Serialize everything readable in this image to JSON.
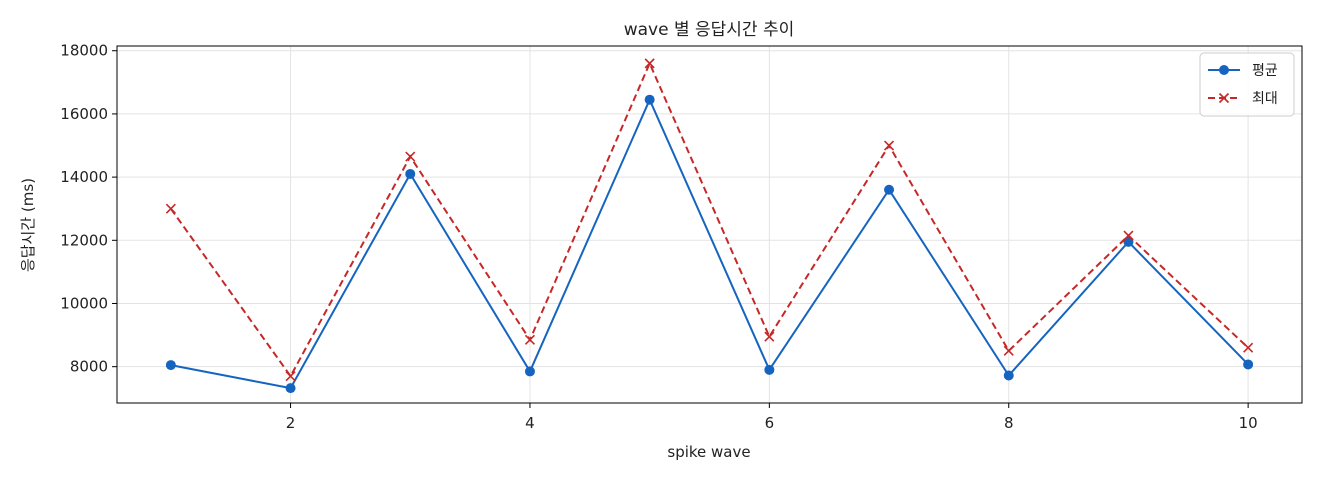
{
  "chart_data": {
    "type": "line",
    "title": "wave 별 응답시간 추이",
    "xlabel": "spike wave",
    "ylabel": "응답시간 (ms)",
    "x": [
      1,
      2,
      3,
      4,
      5,
      6,
      7,
      8,
      9,
      10
    ],
    "xlim": [
      0.55,
      10.45
    ],
    "ylim": [
      6850,
      18150
    ],
    "xticks": [
      2,
      4,
      6,
      8,
      10
    ],
    "yticks": [
      8000,
      10000,
      12000,
      14000,
      16000,
      18000
    ],
    "grid": true,
    "legend_position": "top-right",
    "series": [
      {
        "name": "평균",
        "color": "#1565c0",
        "line_style": "solid",
        "marker": "circle",
        "values": [
          8050,
          7320,
          14100,
          7850,
          16450,
          7900,
          13600,
          7720,
          11950,
          8070
        ]
      },
      {
        "name": "최대",
        "color": "#c62828",
        "line_style": "dashed",
        "marker": "x",
        "values": [
          13000,
          7700,
          14650,
          8850,
          17600,
          8950,
          15000,
          8500,
          12150,
          8600
        ]
      }
    ]
  }
}
